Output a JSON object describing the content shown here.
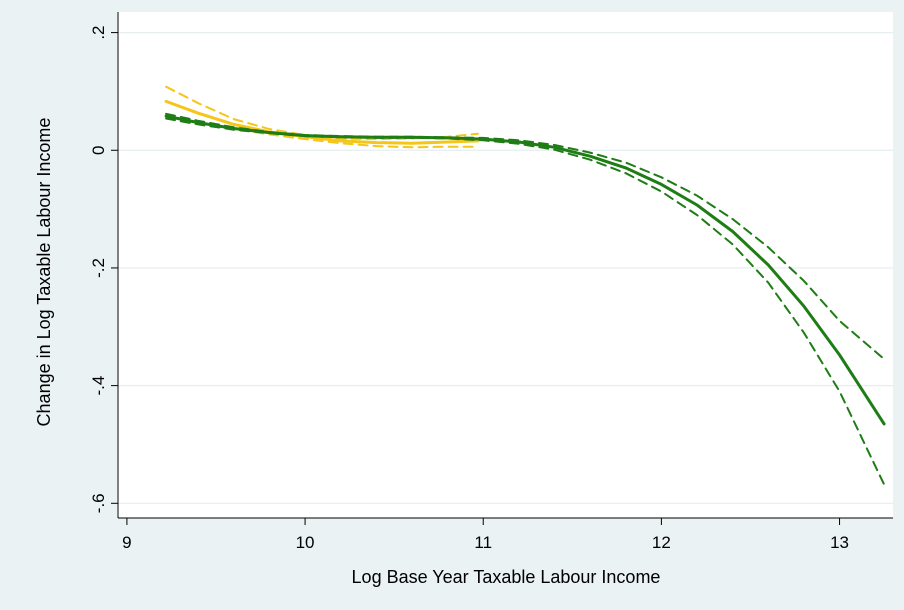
{
  "chart_data": {
    "type": "line",
    "title": "",
    "xlabel": "Log Base Year Taxable Labour Income",
    "ylabel": "Change in Log Taxable Labour Income",
    "xlim": [
      8.95,
      13.3
    ],
    "ylim": [
      -0.625,
      0.235
    ],
    "xticks": [
      9,
      10,
      11,
      12,
      13
    ],
    "xtick_labels": [
      "9",
      "10",
      "11",
      "12",
      "13"
    ],
    "yticks": [
      0.2,
      0,
      -0.2,
      -0.4,
      -0.6
    ],
    "ytick_labels": [
      ".2",
      "0",
      "-.2",
      "-.4",
      "-.6"
    ],
    "grid": true,
    "legend": "none",
    "colors": {
      "frame": "#eaf2f3",
      "plot": "#ffffff",
      "grid": "#e6eef0",
      "yellow": "#f5c518",
      "green": "#1e7d14"
    },
    "series": [
      {
        "color": "#f5c518",
        "style": "solid",
        "x": [
          9.22,
          9.4,
          9.6,
          9.8,
          10.0,
          10.2,
          10.4,
          10.6,
          10.8,
          10.97
        ],
        "values": [
          0.083,
          0.063,
          0.044,
          0.031,
          0.023,
          0.016,
          0.013,
          0.012,
          0.014,
          0.016
        ]
      },
      {
        "color": "#f5c518",
        "style": "dashed",
        "x": [
          9.22,
          9.4,
          9.6,
          9.8,
          10.0,
          10.2,
          10.4,
          10.6,
          10.8,
          10.97
        ],
        "values": [
          0.108,
          0.08,
          0.053,
          0.036,
          0.026,
          0.02,
          0.019,
          0.02,
          0.023,
          0.028
        ]
      },
      {
        "color": "#f5c518",
        "style": "dashed",
        "x": [
          9.22,
          9.4,
          9.6,
          9.8,
          10.0,
          10.2,
          10.4,
          10.6,
          10.8,
          10.97
        ],
        "values": [
          0.06,
          0.047,
          0.036,
          0.027,
          0.019,
          0.012,
          0.007,
          0.005,
          0.006,
          0.006
        ]
      },
      {
        "color": "#1e7d14",
        "style": "solid",
        "x": [
          9.22,
          9.4,
          9.6,
          9.8,
          10.0,
          10.2,
          10.4,
          10.6,
          10.8,
          11.0,
          11.2,
          11.4,
          11.6,
          11.8,
          12.0,
          12.2,
          12.4,
          12.6,
          12.8,
          13.0,
          13.25
        ],
        "values": [
          0.058,
          0.047,
          0.037,
          0.03,
          0.025,
          0.023,
          0.022,
          0.022,
          0.021,
          0.019,
          0.014,
          0.005,
          -0.01,
          -0.03,
          -0.058,
          -0.093,
          -0.138,
          -0.195,
          -0.265,
          -0.348,
          -0.465
        ]
      },
      {
        "color": "#1e7d14",
        "style": "dashed",
        "x": [
          9.22,
          9.4,
          9.6,
          9.8,
          10.0,
          10.2,
          10.4,
          10.6,
          10.8,
          11.0,
          11.2,
          11.4,
          11.6,
          11.8,
          12.0,
          12.2,
          12.4,
          12.6,
          12.8,
          13.0,
          13.25
        ],
        "values": [
          0.062,
          0.05,
          0.039,
          0.031,
          0.026,
          0.024,
          0.023,
          0.023,
          0.022,
          0.021,
          0.017,
          0.009,
          -0.004,
          -0.021,
          -0.046,
          -0.077,
          -0.117,
          -0.165,
          -0.222,
          -0.29,
          -0.355
        ]
      },
      {
        "color": "#1e7d14",
        "style": "dashed",
        "x": [
          9.22,
          9.4,
          9.6,
          9.8,
          10.0,
          10.2,
          10.4,
          10.6,
          10.8,
          11.0,
          11.2,
          11.4,
          11.6,
          11.8,
          12.0,
          12.2,
          12.4,
          12.6,
          12.8,
          13.0,
          13.25
        ],
        "values": [
          0.054,
          0.044,
          0.035,
          0.029,
          0.024,
          0.022,
          0.021,
          0.021,
          0.02,
          0.017,
          0.011,
          0.001,
          -0.016,
          -0.039,
          -0.07,
          -0.11,
          -0.16,
          -0.225,
          -0.31,
          -0.41,
          -0.568
        ]
      }
    ]
  }
}
